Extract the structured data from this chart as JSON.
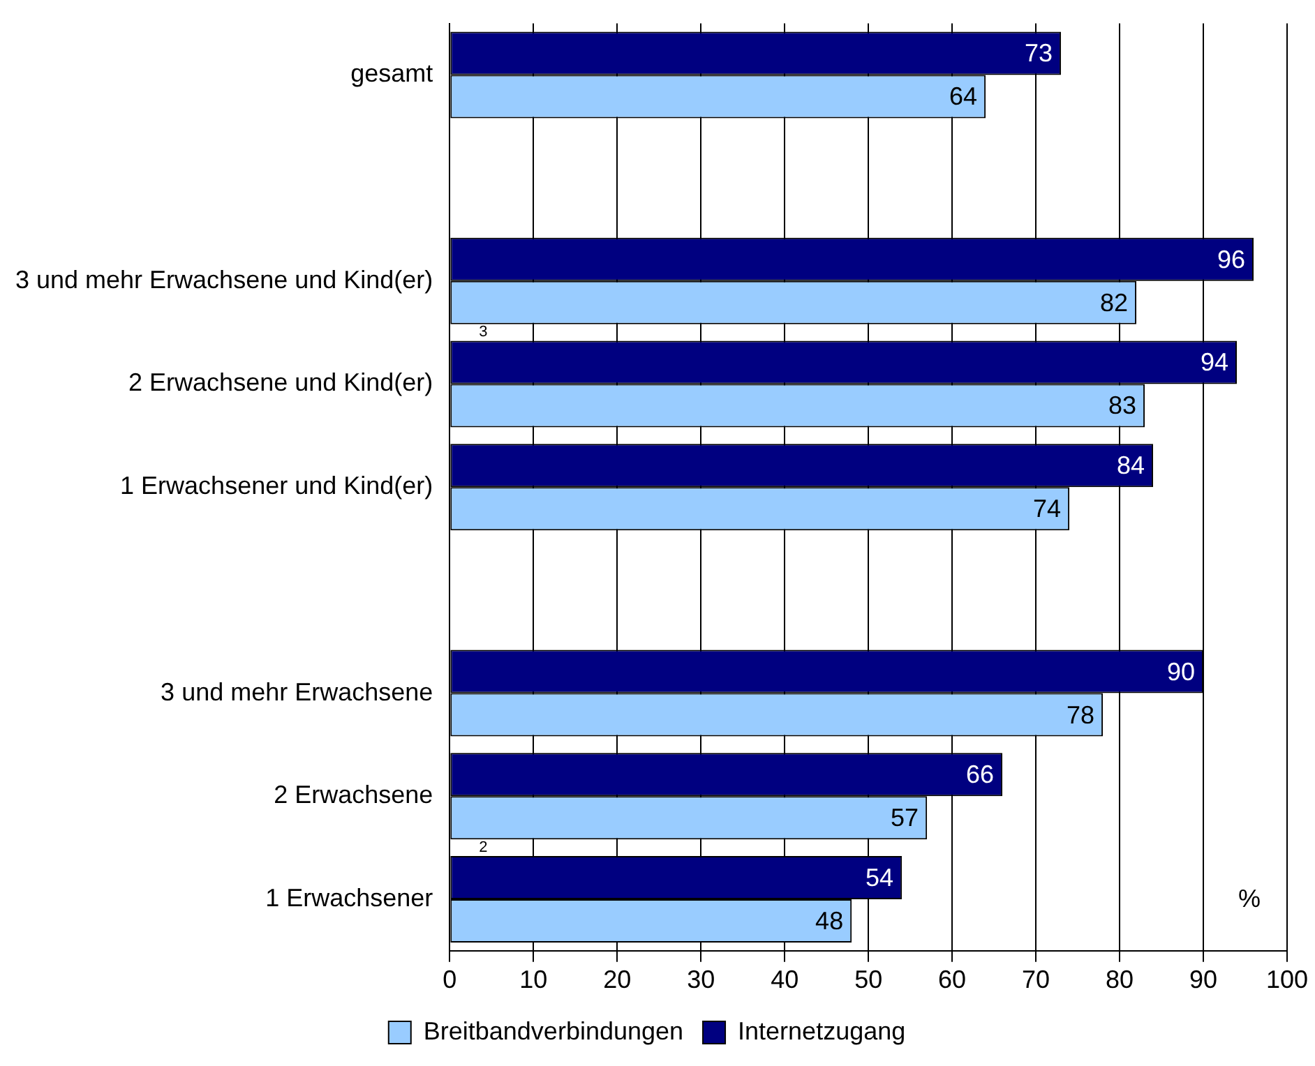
{
  "chart_data": {
    "type": "bar",
    "orientation": "horizontal",
    "categories": [
      "gesamt",
      null,
      "3 und mehr Erwachsene und Kind(er)",
      "2 Erwachsene und Kind(er)",
      "1 Erwachsener und Kind(er)",
      null,
      "3 und mehr Erwachsene",
      "2 Erwachsene",
      "1 Erwachsener"
    ],
    "series": [
      {
        "name": "Internetzugang",
        "color": "#000080",
        "values": [
          73,
          null,
          96,
          94,
          84,
          null,
          90,
          66,
          54
        ]
      },
      {
        "name": "Breitbandverbindungen",
        "color": "#99ccff",
        "values": [
          64,
          null,
          82,
          83,
          74,
          null,
          78,
          57,
          48
        ]
      }
    ],
    "xlim": [
      0,
      100
    ],
    "xticks": [
      0,
      10,
      20,
      30,
      40,
      50,
      60,
      70,
      80,
      90,
      100
    ],
    "grid": "x",
    "legend": "bottom",
    "data_labels": true,
    "annotations": [
      "3",
      "2",
      "%"
    ]
  }
}
